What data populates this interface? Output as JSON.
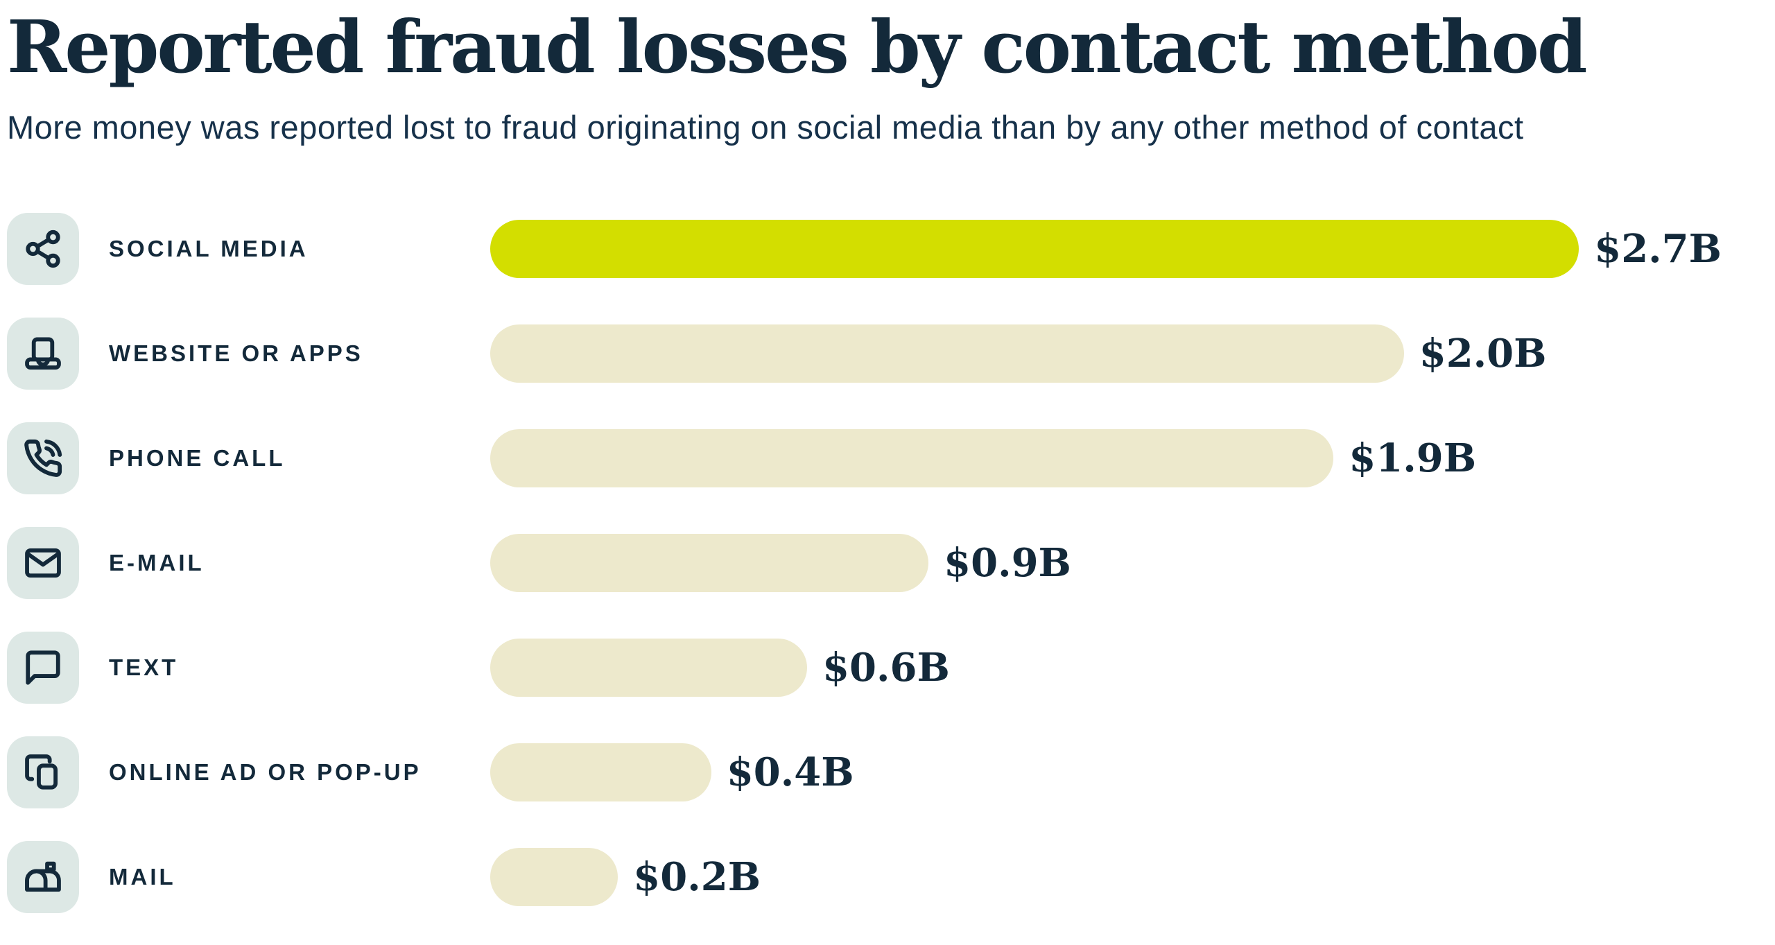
{
  "page": {
    "title": "Reported fraud losses by contact method",
    "subtitle": "More money was reported lost to fraud originating on social media than by any other method of contact"
  },
  "colors": {
    "text_navy": "#13293a",
    "highlight_bar": "#d3de00",
    "default_bar": "#ede9cc",
    "icon_background": "#dde8e5",
    "page_background": "#ffffff"
  },
  "chart_data": {
    "type": "bar",
    "orientation": "horizontal",
    "title": "Reported fraud losses by contact method",
    "subtitle": "More money was reported lost to fraud originating on social media than by any other method of contact",
    "unit": "USD billions",
    "categories": [
      "SOCIAL MEDIA",
      "WEBSITE OR APPS",
      "PHONE CALL",
      "E-MAIL",
      "TEXT",
      "ONLINE AD OR POP-UP",
      "MAIL"
    ],
    "values": [
      2.7,
      2.0,
      1.9,
      0.9,
      0.6,
      0.4,
      0.2
    ],
    "value_labels": [
      "$2.7B",
      "$2.0B",
      "$1.9B",
      "$0.9B",
      "$0.6B",
      "$0.4B",
      "$0.2B"
    ],
    "highlighted_index": 0,
    "legend": "none",
    "grid": false,
    "axis_labels": "none",
    "rows": [
      {
        "label": "SOCIAL MEDIA",
        "value": 2.7,
        "value_label": "$2.7B",
        "icon": "share-icon",
        "highlight": true,
        "bar_width_pct": 85.2
      },
      {
        "label": "WEBSITE OR APPS",
        "value": 2.0,
        "value_label": "$2.0B",
        "icon": "laptop-icon",
        "highlight": false,
        "bar_width_pct": 71.5
      },
      {
        "label": "PHONE CALL",
        "value": 1.9,
        "value_label": "$1.9B",
        "icon": "phone-call-icon",
        "highlight": false,
        "bar_width_pct": 66.0
      },
      {
        "label": "E-MAIL",
        "value": 0.9,
        "value_label": "$0.9B",
        "icon": "envelope-icon",
        "highlight": false,
        "bar_width_pct": 34.3
      },
      {
        "label": "TEXT",
        "value": 0.6,
        "value_label": "$0.6B",
        "icon": "speech-bubble-icon",
        "highlight": false,
        "bar_width_pct": 24.8
      },
      {
        "label": "ONLINE AD OR POP-UP",
        "value": 0.4,
        "value_label": "$0.4B",
        "icon": "popup-windows-icon",
        "highlight": false,
        "bar_width_pct": 17.3
      },
      {
        "label": "MAIL",
        "value": 0.2,
        "value_label": "$0.2B",
        "icon": "mailbox-icon",
        "highlight": false,
        "bar_width_pct": 10.0
      }
    ]
  }
}
